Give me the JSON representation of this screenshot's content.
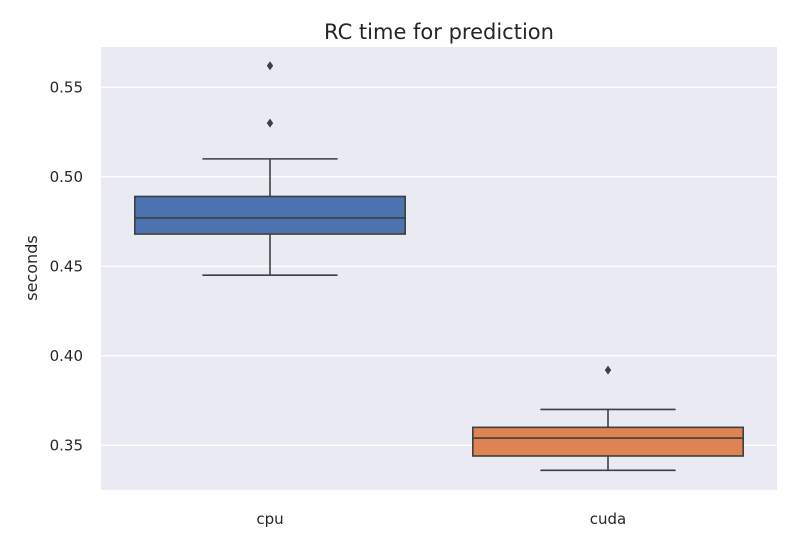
{
  "chart_data": {
    "type": "box",
    "title": "RC time for prediction",
    "xlabel": "",
    "ylabel": "seconds",
    "ylim": [
      0.325,
      0.5725
    ],
    "yticks": [
      0.35,
      0.4,
      0.45,
      0.5,
      0.55
    ],
    "ytick_labels": [
      "0.35",
      "0.40",
      "0.45",
      "0.50",
      "0.55"
    ],
    "categories": [
      "cpu",
      "cuda"
    ],
    "boxes": [
      {
        "category": "cpu",
        "q1": 0.468,
        "median": 0.477,
        "q3": 0.489,
        "whisker_low": 0.445,
        "whisker_high": 0.51,
        "outliers": [
          0.53,
          0.562
        ],
        "color": "#4c72b0"
      },
      {
        "category": "cuda",
        "q1": 0.344,
        "median": 0.354,
        "q3": 0.36,
        "whisker_low": 0.336,
        "whisker_high": 0.37,
        "outliers": [
          0.392
        ],
        "color": "#dd8452"
      }
    ],
    "grid": true,
    "background": "#eaeaf2"
  }
}
